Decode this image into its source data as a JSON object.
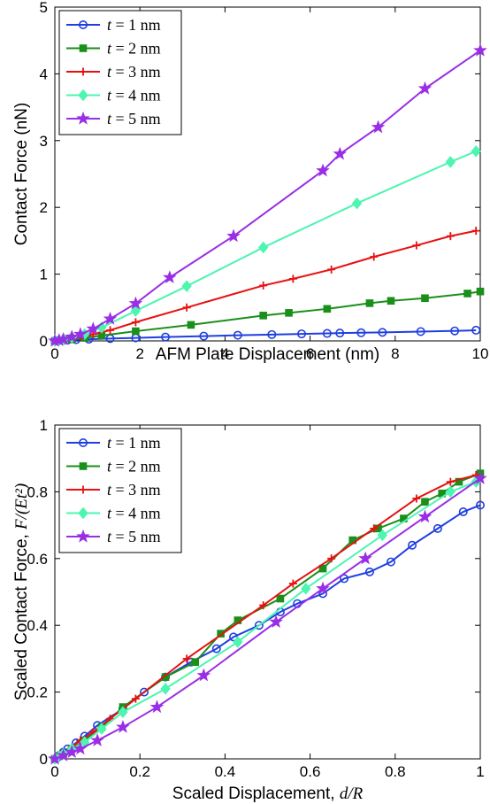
{
  "chart_data": [
    {
      "type": "line",
      "xlabel": "AFM Plate Displacement (nm)",
      "ylabel": "Contact Force (nN)",
      "xlim": [
        0,
        10
      ],
      "ylim": [
        0,
        5
      ],
      "xticks": [
        "0",
        "2",
        "4",
        "6",
        "8",
        "10"
      ],
      "yticks": [
        "0",
        "1",
        "2",
        "3",
        "4",
        "5"
      ],
      "grid": false,
      "legend": "top-left",
      "series": [
        {
          "name": "t = 1 nm",
          "color": "#1f3fe0",
          "marker": "circle",
          "x": [
            0,
            0.05,
            0.1,
            0.2,
            0.3,
            0.5,
            0.8,
            1.3,
            1.9,
            2.6,
            3.5,
            4.3,
            5.1,
            5.8,
            6.4,
            6.7,
            7.2,
            7.7,
            8.6,
            9.4,
            9.9
          ],
          "y": [
            0,
            0.003,
            0.005,
            0.008,
            0.012,
            0.018,
            0.025,
            0.035,
            0.045,
            0.058,
            0.072,
            0.085,
            0.095,
            0.105,
            0.112,
            0.117,
            0.122,
            0.128,
            0.14,
            0.15,
            0.16
          ]
        },
        {
          "name": "t = 2 nm",
          "color": "#1a8f1a",
          "marker": "square",
          "x": [
            0,
            0.1,
            0.2,
            0.4,
            0.7,
            1.1,
            1.9,
            3.2,
            4.9,
            5.5,
            6.4,
            7.4,
            7.9,
            8.7,
            9.7,
            10.0
          ],
          "y": [
            0,
            0.005,
            0.01,
            0.022,
            0.045,
            0.08,
            0.145,
            0.24,
            0.38,
            0.42,
            0.48,
            0.565,
            0.6,
            0.64,
            0.71,
            0.74
          ]
        },
        {
          "name": "t = 3 nm",
          "color": "#e81010",
          "marker": "plus",
          "x": [
            0,
            0.1,
            0.2,
            0.4,
            0.6,
            0.9,
            1.3,
            1.9,
            3.1,
            4.9,
            5.6,
            6.5,
            7.5,
            8.5,
            9.3,
            9.9
          ],
          "y": [
            0,
            0.008,
            0.018,
            0.04,
            0.065,
            0.1,
            0.16,
            0.28,
            0.5,
            0.83,
            0.93,
            1.07,
            1.26,
            1.43,
            1.57,
            1.65
          ]
        },
        {
          "name": "t = 4 nm",
          "color": "#4cf5b0",
          "marker": "diamond",
          "x": [
            0,
            0.1,
            0.2,
            0.4,
            0.7,
            1.1,
            1.9,
            3.1,
            4.9,
            7.1,
            9.3,
            9.9
          ],
          "y": [
            0,
            0.01,
            0.025,
            0.055,
            0.1,
            0.2,
            0.45,
            0.82,
            1.4,
            2.06,
            2.68,
            2.84
          ]
        },
        {
          "name": "t = 5 nm",
          "color": "#9a2ee6",
          "marker": "star",
          "x": [
            0,
            0.1,
            0.2,
            0.4,
            0.6,
            0.9,
            1.3,
            1.9,
            2.7,
            4.2,
            6.3,
            6.7,
            7.6,
            8.7,
            10.0
          ],
          "y": [
            0,
            0.01,
            0.025,
            0.06,
            0.1,
            0.18,
            0.33,
            0.56,
            0.95,
            1.57,
            2.55,
            2.8,
            3.2,
            3.78,
            4.35
          ]
        }
      ]
    },
    {
      "type": "line",
      "xlabel": "Scaled Displacement, ",
      "xlabel_math": "d/R",
      "ylabel": "Scaled Contact Force, ",
      "ylabel_math": "F/(Et²)",
      "xlim": [
        0,
        1
      ],
      "ylim": [
        0,
        1
      ],
      "xticks": [
        "0",
        "0.2",
        "0.4",
        "0.6",
        "0.8",
        "1"
      ],
      "yticks": [
        "0",
        "0.2",
        "0.4",
        "0.6",
        "0.8",
        "1"
      ],
      "grid": false,
      "legend": "top-left",
      "series": [
        {
          "name": "t = 1 nm",
          "color": "#1f3fe0",
          "marker": "circle",
          "x": [
            0,
            0.01,
            0.02,
            0.03,
            0.05,
            0.07,
            0.1,
            0.16,
            0.21,
            0.26,
            0.32,
            0.38,
            0.42,
            0.48,
            0.53,
            0.57,
            0.63,
            0.68,
            0.74,
            0.79,
            0.84,
            0.9,
            0.96,
            1.0
          ],
          "y": [
            0,
            0.01,
            0.02,
            0.03,
            0.048,
            0.068,
            0.1,
            0.15,
            0.2,
            0.245,
            0.29,
            0.33,
            0.365,
            0.4,
            0.44,
            0.465,
            0.495,
            0.54,
            0.56,
            0.59,
            0.64,
            0.69,
            0.74,
            0.76
          ]
        },
        {
          "name": "t = 2 nm",
          "color": "#1a8f1a",
          "marker": "square",
          "x": [
            0,
            0.01,
            0.02,
            0.04,
            0.07,
            0.11,
            0.16,
            0.26,
            0.33,
            0.39,
            0.43,
            0.53,
            0.63,
            0.7,
            0.76,
            0.82,
            0.87,
            0.91,
            0.95,
            1.0
          ],
          "y": [
            0,
            0.008,
            0.015,
            0.03,
            0.055,
            0.095,
            0.155,
            0.245,
            0.29,
            0.375,
            0.415,
            0.48,
            0.57,
            0.655,
            0.69,
            0.72,
            0.77,
            0.795,
            0.83,
            0.855
          ]
        },
        {
          "name": "t = 3 nm",
          "color": "#e81010",
          "marker": "plus",
          "x": [
            0,
            0.01,
            0.02,
            0.04,
            0.06,
            0.09,
            0.13,
            0.19,
            0.31,
            0.49,
            0.56,
            0.65,
            0.75,
            0.85,
            0.93,
            0.99
          ],
          "y": [
            0,
            0.008,
            0.018,
            0.035,
            0.055,
            0.08,
            0.12,
            0.18,
            0.3,
            0.46,
            0.525,
            0.6,
            0.69,
            0.78,
            0.83,
            0.85
          ]
        },
        {
          "name": "t = 4 nm",
          "color": "#4cf5b0",
          "marker": "diamond",
          "x": [
            0,
            0.01,
            0.02,
            0.04,
            0.07,
            0.11,
            0.16,
            0.26,
            0.43,
            0.59,
            0.77,
            0.93,
            0.99
          ],
          "y": [
            0,
            0.007,
            0.015,
            0.03,
            0.05,
            0.09,
            0.14,
            0.21,
            0.35,
            0.51,
            0.67,
            0.8,
            0.83
          ]
        },
        {
          "name": "t = 5 nm",
          "color": "#9a2ee6",
          "marker": "star",
          "x": [
            0,
            0.02,
            0.04,
            0.06,
            0.1,
            0.16,
            0.24,
            0.35,
            0.52,
            0.63,
            0.73,
            0.87,
            1.0
          ],
          "y": [
            0,
            0.01,
            0.02,
            0.03,
            0.055,
            0.095,
            0.155,
            0.25,
            0.41,
            0.51,
            0.6,
            0.725,
            0.84
          ]
        }
      ]
    }
  ]
}
